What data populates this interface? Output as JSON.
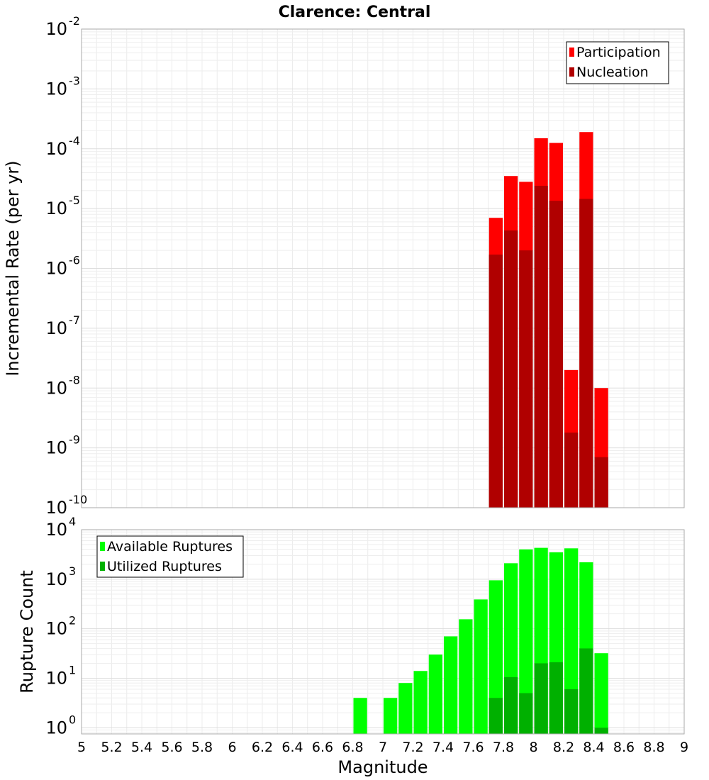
{
  "title": "Clarence: Central",
  "xlabel": "Magnitude",
  "colors": {
    "participation": "#ff0000",
    "nucleation": "#b00000",
    "available": "#00ff00",
    "utilized": "#00b000"
  },
  "chart_data": [
    {
      "type": "bar",
      "ylabel": "Incremental Rate (per yr)",
      "yscale": "log",
      "ylim": [
        1e-10,
        0.01
      ],
      "xlim": [
        5,
        9
      ],
      "legend_position": "top-right",
      "x": [
        7.75,
        7.85,
        7.95,
        8.05,
        8.15,
        8.25,
        8.35,
        8.45
      ],
      "series": [
        {
          "name": "Participation",
          "values": [
            7e-06,
            3.5e-05,
            2.8e-05,
            0.00015,
            0.000125,
            2e-08,
            0.00019,
            1e-08
          ]
        },
        {
          "name": "Nucleation",
          "values": [
            1.7e-06,
            4.3e-06,
            2e-06,
            2.4e-05,
            1.35e-05,
            1.8e-09,
            1.45e-05,
            7e-10
          ]
        }
      ],
      "yticks": [
        {
          "base": "10",
          "exp": "-10"
        },
        {
          "base": "10",
          "exp": "-9"
        },
        {
          "base": "10",
          "exp": "-8"
        },
        {
          "base": "10",
          "exp": "-7"
        },
        {
          "base": "10",
          "exp": "-6"
        },
        {
          "base": "10",
          "exp": "-5"
        },
        {
          "base": "10",
          "exp": "-4"
        },
        {
          "base": "10",
          "exp": "-3"
        },
        {
          "base": "10",
          "exp": "-2"
        }
      ]
    },
    {
      "type": "bar",
      "ylabel": "Rupture Count",
      "yscale": "log",
      "ylim": [
        0.75,
        10000
      ],
      "xlim": [
        5,
        9
      ],
      "legend_position": "top-left",
      "x": [
        6.85,
        7.05,
        7.15,
        7.25,
        7.35,
        7.45,
        7.55,
        7.65,
        7.75,
        7.85,
        7.95,
        8.05,
        8.15,
        8.25,
        8.35,
        8.45
      ],
      "series": [
        {
          "name": "Available Ruptures",
          "values": [
            4,
            4,
            8,
            14,
            30,
            70,
            155,
            390,
            950,
            2100,
            4000,
            4300,
            3500,
            4200,
            2200,
            32
          ]
        },
        {
          "name": "Utilized Ruptures",
          "values": [
            0,
            0,
            0,
            0,
            0,
            0,
            0,
            0,
            4,
            10.5,
            5,
            20,
            21,
            6,
            40,
            1
          ]
        }
      ],
      "yticks": [
        {
          "base": "10",
          "exp": "0"
        },
        {
          "base": "10",
          "exp": "1"
        },
        {
          "base": "10",
          "exp": "2"
        },
        {
          "base": "10",
          "exp": "3"
        },
        {
          "base": "10",
          "exp": "4"
        }
      ]
    }
  ],
  "xticks": [
    "5",
    "5.2",
    "5.4",
    "5.6",
    "5.8",
    "6",
    "6.2",
    "6.4",
    "6.6",
    "6.8",
    "7",
    "7.2",
    "7.4",
    "7.6",
    "7.8",
    "8",
    "8.2",
    "8.4",
    "8.6",
    "8.8",
    "9"
  ]
}
